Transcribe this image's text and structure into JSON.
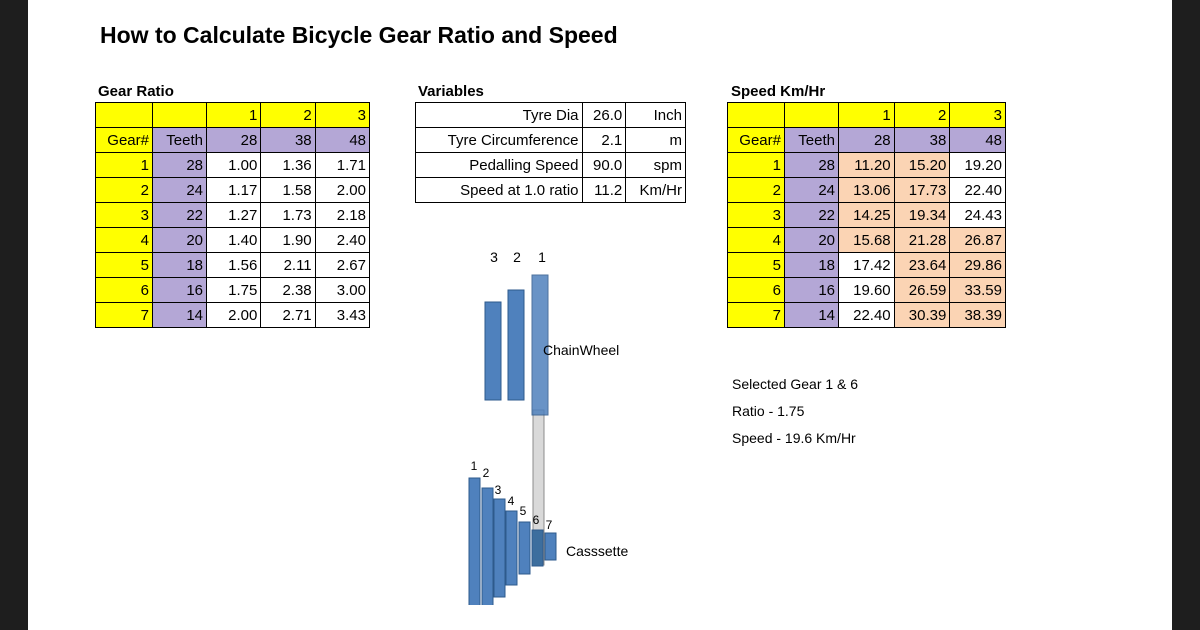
{
  "title": "How to Calculate Bicycle Gear Ratio and Speed",
  "gear_ratio": {
    "heading": "Gear Ratio",
    "chainring_numbers": [
      "1",
      "2",
      "3"
    ],
    "col_gear": "Gear#",
    "col_teeth": "Teeth",
    "chainring_teeth": [
      "28",
      "38",
      "48"
    ],
    "rows": [
      {
        "gear": "1",
        "teeth": "28",
        "vals": [
          "1.00",
          "1.36",
          "1.71"
        ]
      },
      {
        "gear": "2",
        "teeth": "24",
        "vals": [
          "1.17",
          "1.58",
          "2.00"
        ]
      },
      {
        "gear": "3",
        "teeth": "22",
        "vals": [
          "1.27",
          "1.73",
          "2.18"
        ]
      },
      {
        "gear": "4",
        "teeth": "20",
        "vals": [
          "1.40",
          "1.90",
          "2.40"
        ]
      },
      {
        "gear": "5",
        "teeth": "18",
        "vals": [
          "1.56",
          "2.11",
          "2.67"
        ]
      },
      {
        "gear": "6",
        "teeth": "16",
        "vals": [
          "1.75",
          "2.38",
          "3.00"
        ]
      },
      {
        "gear": "7",
        "teeth": "14",
        "vals": [
          "2.00",
          "2.71",
          "3.43"
        ]
      }
    ]
  },
  "variables": {
    "heading": "Variables",
    "rows": [
      {
        "name": "Tyre Dia",
        "value": "26.0",
        "unit": "Inch"
      },
      {
        "name": "Tyre Circumference",
        "value": "2.1",
        "unit": "m"
      },
      {
        "name": "Pedalling Speed",
        "value": "90.0",
        "unit": "spm"
      },
      {
        "name": "Speed at 1.0 ratio",
        "value": "11.2",
        "unit": "Km/Hr"
      }
    ]
  },
  "speed": {
    "heading": "Speed Km/Hr",
    "chainring_numbers": [
      "1",
      "2",
      "3"
    ],
    "col_gear": "Gear#",
    "col_teeth": "Teeth",
    "chainring_teeth": [
      "28",
      "38",
      "48"
    ],
    "rows": [
      {
        "gear": "1",
        "teeth": "28",
        "vals": [
          "11.20",
          "15.20",
          "19.20"
        ]
      },
      {
        "gear": "2",
        "teeth": "24",
        "vals": [
          "13.06",
          "17.73",
          "22.40"
        ]
      },
      {
        "gear": "3",
        "teeth": "22",
        "vals": [
          "14.25",
          "19.34",
          "24.43"
        ]
      },
      {
        "gear": "4",
        "teeth": "20",
        "vals": [
          "15.68",
          "21.28",
          "26.87"
        ]
      },
      {
        "gear": "5",
        "teeth": "18",
        "vals": [
          "17.42",
          "23.64",
          "29.86"
        ]
      },
      {
        "gear": "6",
        "teeth": "16",
        "vals": [
          "19.60",
          "26.59",
          "33.59"
        ]
      },
      {
        "gear": "7",
        "teeth": "14",
        "vals": [
          "22.40",
          "30.39",
          "38.39"
        ]
      }
    ],
    "highlight": [
      [
        "o",
        "o",
        "w"
      ],
      [
        "o",
        "o",
        "w"
      ],
      [
        "o",
        "o",
        "w"
      ],
      [
        "o",
        "o",
        "o"
      ],
      [
        "w",
        "o",
        "o"
      ],
      [
        "w",
        "o",
        "o"
      ],
      [
        "w",
        "o",
        "o"
      ]
    ]
  },
  "diagram": {
    "chainwheel_label": "ChainWheel",
    "cassette_label": "Casssette",
    "chainwheel_numbers": [
      "3",
      "2",
      "1"
    ],
    "cassette_numbers": [
      "1",
      "2",
      "3",
      "4",
      "5",
      "6",
      "7"
    ],
    "selected_chainring": 1,
    "selected_cog": 6
  },
  "selection": {
    "line1": "Selected Gear 1 & 6",
    "line2": "Ratio - 1.75",
    "line3": "Speed - 19.6 Km/Hr"
  },
  "colors": {
    "header_yellow": "#ffff00",
    "teeth_purple": "#b4a7d6",
    "speed_highlight": "#fbd4b4",
    "gear_blue": "#4f81bd",
    "chain_grey": "#d9d9d9"
  }
}
